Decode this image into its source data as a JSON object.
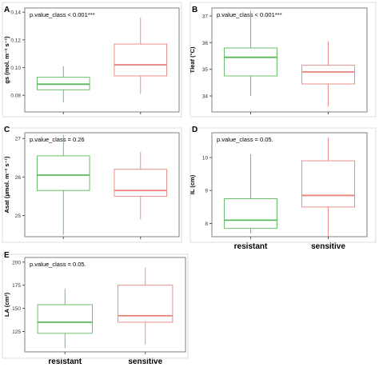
{
  "palette": {
    "resistant": "#5cb85c",
    "sensitive": "#e8837b",
    "panel_border": "#7f7f7f"
  },
  "xaxis": {
    "categories": [
      "resistant",
      "sensitive"
    ]
  },
  "chart_data": [
    {
      "panel": "A",
      "type": "box",
      "annotation": "p.value_class < 0.001***",
      "ylabel": "gs (mol. m⁻² s⁻¹)",
      "ylim": [
        0.068,
        0.143
      ],
      "yticks": [
        0.08,
        0.1,
        0.12,
        0.14
      ],
      "ytick_labels": [
        "0.08",
        "0.10",
        "0.12",
        "0.14"
      ],
      "show_x_labels": false,
      "boxes": [
        {
          "category": "resistant",
          "min": 0.075,
          "q1": 0.084,
          "median": 0.088,
          "q3": 0.093,
          "max": 0.101
        },
        {
          "category": "sensitive",
          "min": 0.081,
          "q1": 0.094,
          "median": 0.102,
          "q3": 0.117,
          "max": 0.136
        }
      ]
    },
    {
      "panel": "B",
      "type": "box",
      "annotation": "p.value_class < 0.001***",
      "ylabel": "Tleaf (°C)",
      "ylim": [
        33.4,
        37.3
      ],
      "yticks": [
        34,
        35,
        36,
        37
      ],
      "ytick_labels": [
        "34",
        "35",
        "36",
        "37"
      ],
      "show_x_labels": false,
      "boxes": [
        {
          "category": "resistant",
          "min": 34.0,
          "q1": 34.75,
          "median": 35.45,
          "q3": 35.8,
          "max": 37.2
        },
        {
          "category": "sensitive",
          "min": 33.6,
          "q1": 34.45,
          "median": 34.9,
          "q3": 35.15,
          "max": 36.05
        }
      ]
    },
    {
      "panel": "C",
      "type": "box",
      "annotation": "p.value_class = 0.26",
      "ylabel": "Asat (µmol. m⁻² s⁻¹)",
      "ylim": [
        24.45,
        27.15
      ],
      "yticks": [
        25,
        26,
        27
      ],
      "ytick_labels": [
        "25",
        "26",
        "27"
      ],
      "show_x_labels": false,
      "boxes": [
        {
          "category": "resistant",
          "min": 24.5,
          "q1": 25.65,
          "median": 26.05,
          "q3": 26.55,
          "max": 27.1
        },
        {
          "category": "sensitive",
          "min": 24.9,
          "q1": 25.5,
          "median": 25.65,
          "q3": 26.2,
          "max": 26.65
        }
      ]
    },
    {
      "panel": "D",
      "type": "box",
      "annotation": "p.value_class = 0.05.",
      "ylabel": "IL (cm)",
      "ylim": [
        7.6,
        10.75
      ],
      "yticks": [
        8,
        9,
        10
      ],
      "ytick_labels": [
        "8",
        "9",
        "10"
      ],
      "show_x_labels": true,
      "boxes": [
        {
          "category": "resistant",
          "min": 7.7,
          "q1": 7.85,
          "median": 8.1,
          "q3": 8.75,
          "max": 10.1
        },
        {
          "category": "sensitive",
          "min": 7.6,
          "q1": 8.5,
          "median": 8.85,
          "q3": 9.9,
          "max": 10.6
        }
      ]
    },
    {
      "panel": "E",
      "type": "box",
      "annotation": "p.value_class = 0.05.",
      "ylabel": "LA (cm²)",
      "ylim": [
        103,
        205
      ],
      "yticks": [
        125,
        150,
        175,
        200
      ],
      "ytick_labels": [
        "125",
        "150",
        "175",
        "200"
      ],
      "show_x_labels": true,
      "boxes": [
        {
          "category": "resistant",
          "min": 107,
          "q1": 123,
          "median": 135,
          "q3": 154,
          "max": 171
        },
        {
          "category": "sensitive",
          "min": 111,
          "q1": 135,
          "median": 142,
          "q3": 175,
          "max": 194
        }
      ]
    }
  ]
}
